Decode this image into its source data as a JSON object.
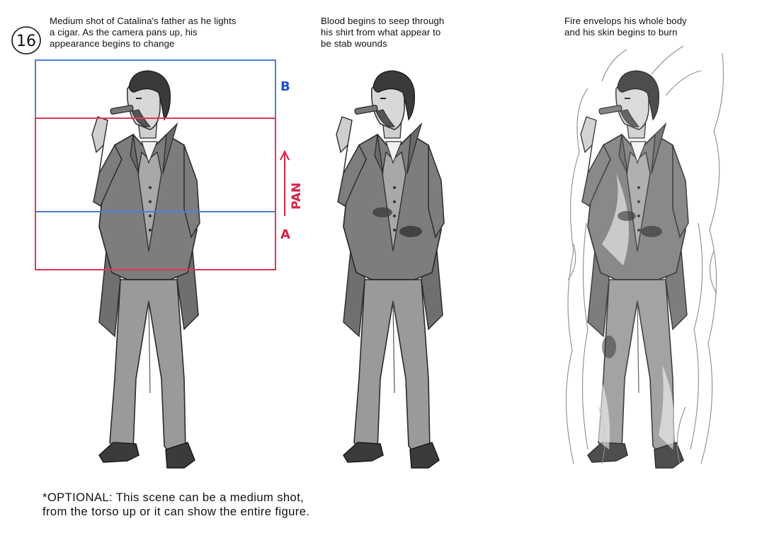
{
  "panel_number": "16",
  "captions": [
    "Medium shot of Catalina's father as he lights\na cigar. As the camera pans up, his\nappearance begins to change",
    "Blood begins to seep through\nhis shirt from what appear to\nbe stab wounds",
    "Fire envelops his whole body\nand his skin begins to burn"
  ],
  "frame_labels": {
    "top": "B",
    "bottom": "A",
    "pan": "PAN"
  },
  "colors": {
    "frame_b": "#4a7fe0",
    "frame_a": "#de3a55",
    "label_b": "#1f4fd6",
    "label_red": "#d92246"
  },
  "note": "*OPTIONAL: This scene can be a medium shot,\nfrom the torso up or it can show the entire figure."
}
